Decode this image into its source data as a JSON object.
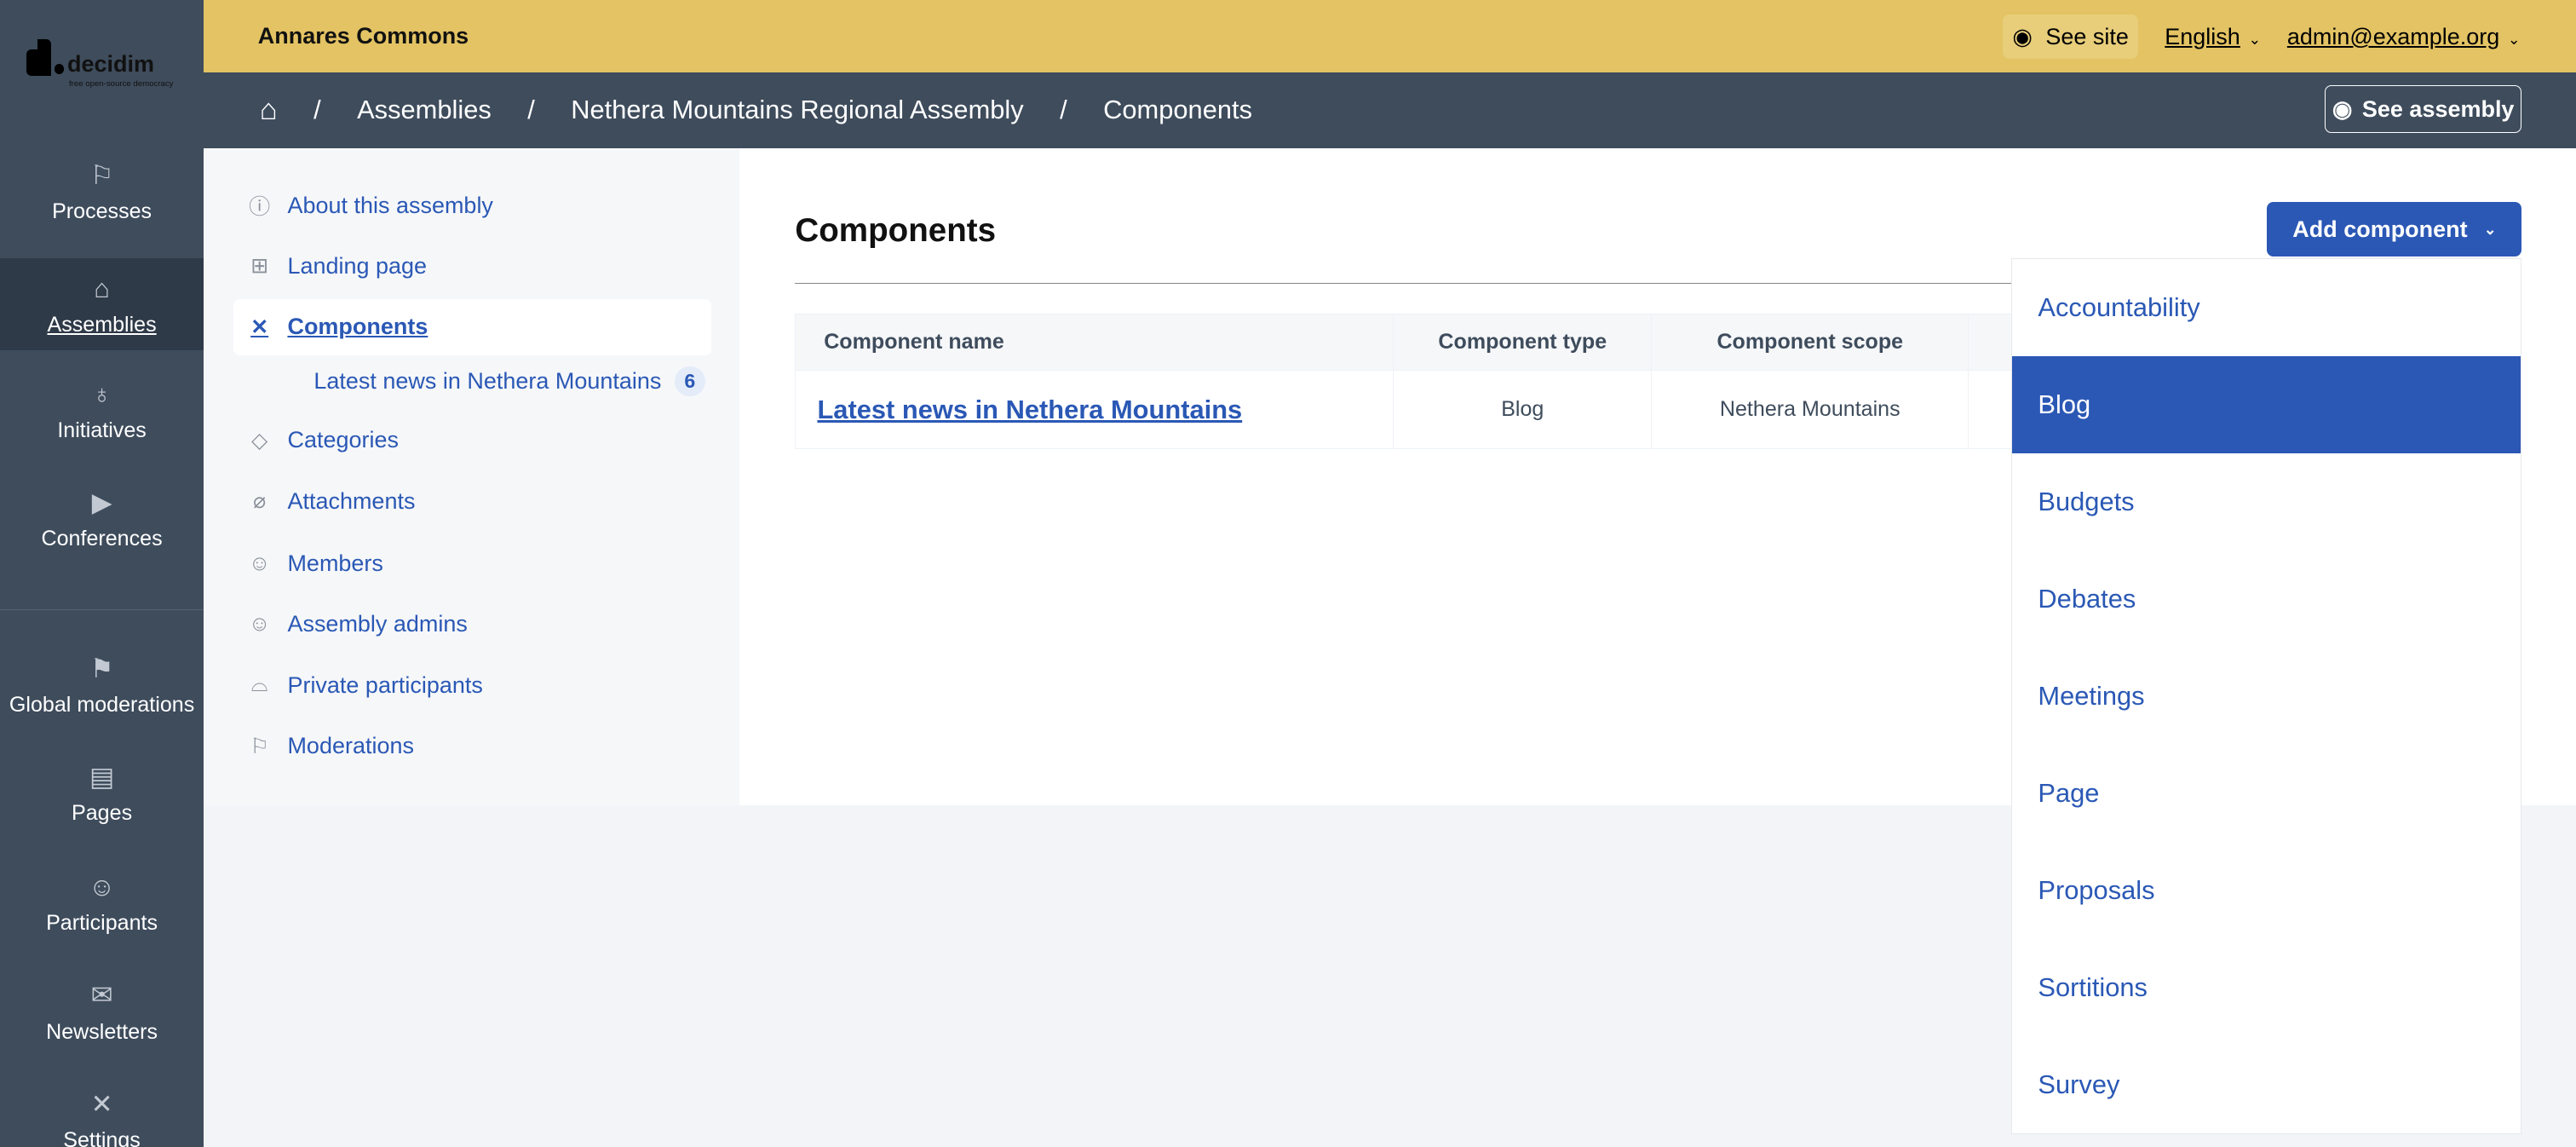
{
  "brand": {
    "logo_text": "decidim",
    "logo_tagline": "free open-source democracy"
  },
  "mainnav": [
    {
      "label": "Processes",
      "icon": "processes-icon"
    },
    {
      "label": "Assemblies",
      "icon": "assemblies-icon",
      "active": true
    },
    {
      "label": "Initiatives",
      "icon": "lightbulb-icon"
    },
    {
      "label": "Conferences",
      "icon": "video-icon"
    },
    {
      "label": "Global moderations",
      "icon": "flag-icon"
    },
    {
      "label": "Pages",
      "icon": "pages-icon"
    },
    {
      "label": "Participants",
      "icon": "participants-icon"
    },
    {
      "label": "Newsletters",
      "icon": "mail-icon"
    },
    {
      "label": "Settings",
      "icon": "tools-icon"
    }
  ],
  "topbar": {
    "org": "Annares Commons",
    "see_site": "See site",
    "language": "English",
    "user": "admin@example.org"
  },
  "breadcrumb": [
    "Assemblies",
    "Nethera Mountains Regional Assembly",
    "Components"
  ],
  "see_assembly": "See assembly",
  "subnav": [
    {
      "label": "About this assembly",
      "icon": "info-icon"
    },
    {
      "label": "Landing page",
      "icon": "layout-icon"
    },
    {
      "label": "Components",
      "icon": "tools-icon",
      "active": true
    },
    {
      "label": "Categories",
      "icon": "tag-icon"
    },
    {
      "label": "Attachments",
      "icon": "paperclip-icon"
    },
    {
      "label": "Members",
      "icon": "user-icon"
    },
    {
      "label": "Assembly admins",
      "icon": "user-gear-icon"
    },
    {
      "label": "Private participants",
      "icon": "incognito-icon"
    },
    {
      "label": "Moderations",
      "icon": "flag-icon"
    }
  ],
  "subsub": {
    "label": "Latest news in Nethera Mountains",
    "count": "6"
  },
  "main": {
    "title": "Components",
    "add_button": "Add component",
    "columns": [
      "Component name",
      "Component type",
      "Component scope"
    ],
    "rows": [
      {
        "name": "Latest news in Nethera Mountains",
        "type": "Blog",
        "scope": "Nethera Mountains"
      }
    ]
  },
  "dropdown": {
    "items": [
      "Accountability",
      "Blog",
      "Budgets",
      "Debates",
      "Meetings",
      "Page",
      "Proposals",
      "Sortitions",
      "Survey"
    ],
    "highlighted": "Blog"
  },
  "colors": {
    "accent": "#2b58b5",
    "topbar": "#e3c363",
    "nav": "#3e4c5c"
  }
}
